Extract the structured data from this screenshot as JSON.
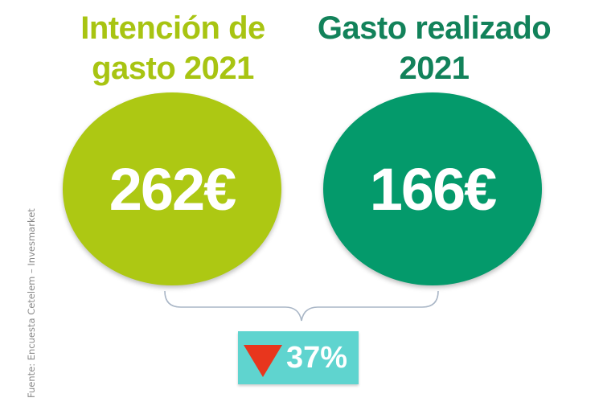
{
  "left": {
    "title": "Intención de\ngasto 2021",
    "value": "262€",
    "color": "#adc813"
  },
  "right": {
    "title": "Gasto realizado\n2021",
    "value": "166€",
    "color": "#049a6b"
  },
  "change": {
    "text": "37%",
    "direction": "down",
    "icon": "red-down-triangle",
    "badge_color": "#5fd4cf"
  },
  "source": "Fuente: Encuesta Cetelem – Invesmarket"
}
